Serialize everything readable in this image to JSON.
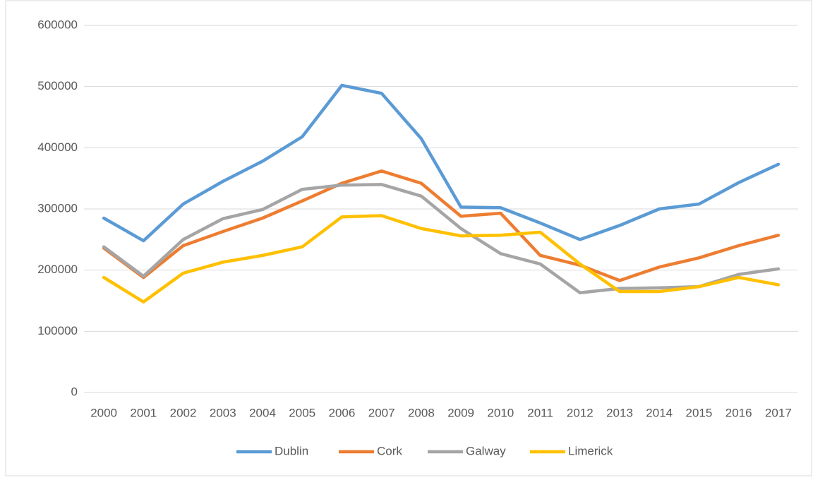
{
  "chart_data": {
    "type": "line",
    "categories": [
      "2000",
      "2001",
      "2002",
      "2003",
      "2004",
      "2005",
      "2006",
      "2007",
      "2008",
      "2009",
      "2010",
      "2011",
      "2012",
      "2013",
      "2014",
      "2015",
      "2016",
      "2017"
    ],
    "series": [
      {
        "name": "Dublin",
        "color": "#5b9bd5",
        "values": [
          285000,
          248000,
          308000,
          345000,
          378000,
          418000,
          502000,
          489000,
          415000,
          303000,
          302000,
          277000,
          250000,
          273000,
          300000,
          308000,
          343000,
          373000
        ]
      },
      {
        "name": "Cork",
        "color": "#ed7d31",
        "values": [
          236000,
          188000,
          240000,
          263000,
          285000,
          313000,
          342000,
          362000,
          342000,
          288000,
          293000,
          224000,
          208000,
          183000,
          205000,
          220000,
          240000,
          257000
        ]
      },
      {
        "name": "Galway",
        "color": "#a5a5a5",
        "values": [
          238000,
          190000,
          250000,
          284000,
          299000,
          332000,
          339000,
          340000,
          321000,
          268000,
          227000,
          210000,
          163000,
          170000,
          171000,
          173000,
          193000,
          202000
        ]
      },
      {
        "name": "Limerick",
        "color": "#ffc000",
        "values": [
          188000,
          148000,
          195000,
          213000,
          224000,
          238000,
          287000,
          289000,
          268000,
          256000,
          257000,
          262000,
          210000,
          165000,
          165000,
          173000,
          188000,
          176000
        ]
      }
    ],
    "ylim": [
      0,
      600000
    ],
    "yticks": [
      0,
      100000,
      200000,
      300000,
      400000,
      500000,
      600000
    ],
    "grid": true,
    "legend": "bottom"
  }
}
